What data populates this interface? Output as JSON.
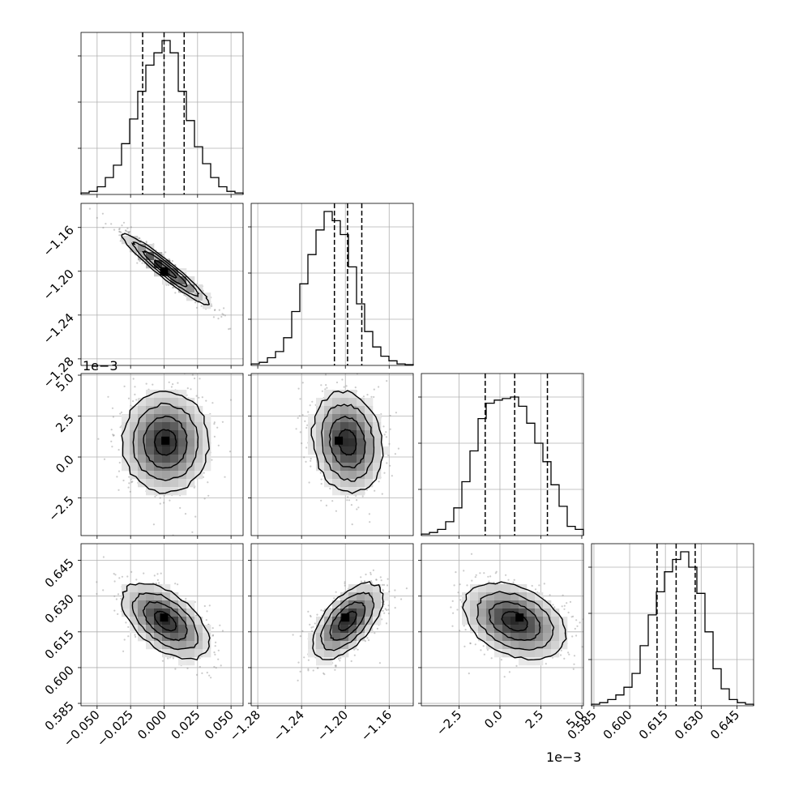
{
  "chart_data": {
    "type": "corner",
    "parameters": [
      {
        "ticks": [
          "−0.050",
          "−0.025",
          "0.000",
          "0.025",
          "0.050"
        ],
        "tick_values": [
          -0.05,
          -0.025,
          0.0,
          0.025,
          0.05
        ],
        "range": [
          -0.062,
          0.059
        ],
        "quantiles": [
          -0.016,
          0.0,
          0.015
        ],
        "offset_label": ""
      },
      {
        "ticks": [
          "−1.28",
          "−1.24",
          "−1.20",
          "−1.16"
        ],
        "tick_values": [
          -1.28,
          -1.24,
          -1.2,
          -1.16
        ],
        "range": [
          -1.286,
          -1.138
        ],
        "quantiles": [
          -1.21,
          -1.198,
          -1.185
        ],
        "offset_label": ""
      },
      {
        "ticks": [
          "−2.5",
          "0.0",
          "2.5",
          "5.0"
        ],
        "tick_values": [
          -2.5,
          0.0,
          2.5,
          5.0
        ],
        "range": [
          -4.8,
          5.1
        ],
        "quantiles": [
          -0.9,
          0.9,
          2.9
        ],
        "offset_label": "1e−3"
      },
      {
        "ticks": [
          "0.585",
          "0.600",
          "0.615",
          "0.630",
          "0.645"
        ],
        "tick_values": [
          0.585,
          0.6,
          0.615,
          0.63,
          0.645
        ],
        "range": [
          0.584,
          0.652
        ],
        "quantiles": [
          0.6115,
          0.6195,
          0.6275
        ],
        "offset_label": ""
      }
    ],
    "histograms": [
      [
        0.01,
        0.02,
        0.05,
        0.11,
        0.19,
        0.33,
        0.49,
        0.67,
        0.84,
        0.92,
        1.0,
        0.92,
        0.67,
        0.48,
        0.31,
        0.2,
        0.11,
        0.05,
        0.02,
        0.01
      ],
      [
        0.01,
        0.02,
        0.05,
        0.09,
        0.18,
        0.35,
        0.53,
        0.72,
        0.88,
        1.0,
        0.94,
        0.85,
        0.64,
        0.4,
        0.22,
        0.12,
        0.06,
        0.03,
        0.01,
        0.005
      ],
      [
        0.01,
        0.02,
        0.04,
        0.09,
        0.18,
        0.35,
        0.55,
        0.76,
        0.86,
        0.88,
        0.89,
        0.9,
        0.84,
        0.73,
        0.6,
        0.48,
        0.33,
        0.19,
        0.06,
        0.04
      ],
      [
        0.01,
        0.02,
        0.04,
        0.07,
        0.12,
        0.21,
        0.39,
        0.59,
        0.74,
        0.87,
        0.95,
        1.0,
        0.9,
        0.73,
        0.48,
        0.24,
        0.11,
        0.04,
        0.02,
        0.01
      ]
    ],
    "pairs": [
      {
        "row": 1,
        "col": 0,
        "mean": [
          0.001,
          -1.198
        ],
        "cov": [
          [
            0.00026,
            -0.000246
          ],
          [
            -0.000246,
            0.000256
          ]
        ],
        "peak": [
          0.0,
          -1.2
        ]
      },
      {
        "row": 2,
        "col": 0,
        "mean": [
          0.001,
          0.9
        ],
        "cov": [
          [
            0.00026,
            0.0
          ],
          [
            0.0,
            2.4
          ]
        ],
        "peak": [
          0.001,
          1.0
        ]
      },
      {
        "row": 2,
        "col": 1,
        "mean": [
          -1.198,
          0.9
        ],
        "cov": [
          [
            0.000256,
            -0.0033
          ],
          [
            -0.0033,
            2.4
          ]
        ],
        "peak": [
          -1.206,
          1.0
        ]
      },
      {
        "row": 3,
        "col": 0,
        "mean": [
          0.001,
          0.6195
        ],
        "cov": [
          [
            0.00026,
            -7e-05
          ],
          [
            -7e-05,
            6.4e-05
          ]
        ],
        "peak": [
          0.0,
          0.621
        ]
      },
      {
        "row": 3,
        "col": 1,
        "mean": [
          -1.198,
          0.6195
        ],
        "cov": [
          [
            0.000256,
            7.75e-05
          ],
          [
            7.75e-05,
            6.4e-05
          ]
        ],
        "peak": [
          -1.2,
          0.621
        ]
      },
      {
        "row": 3,
        "col": 2,
        "mean": [
          0.9,
          0.6195
        ],
        "cov": [
          [
            2.4,
            -0.0042
          ],
          [
            -0.0042,
            6.4e-05
          ]
        ],
        "peak": [
          1.2,
          0.621
        ]
      }
    ],
    "contour_levels_sigma": [
      0.5,
      1.0,
      1.5,
      2.0
    ],
    "grid": true
  }
}
